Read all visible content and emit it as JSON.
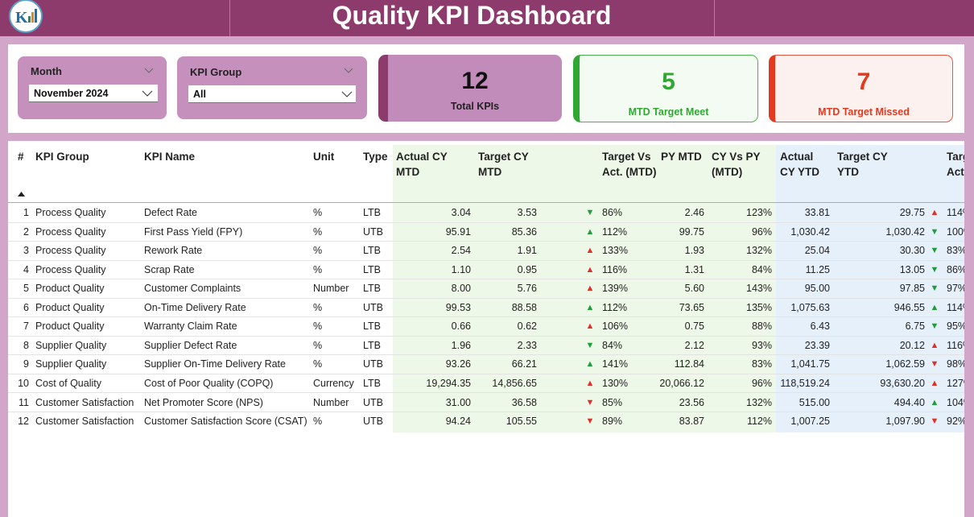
{
  "header": {
    "title": "Quality KPI Dashboard"
  },
  "filters": [
    {
      "label": "Month",
      "value": "November 2024"
    },
    {
      "label": "KPI Group",
      "value": "All"
    }
  ],
  "cards": [
    {
      "value": "12",
      "label": "Total KPIs"
    },
    {
      "value": "5",
      "label": "MTD Target Meet"
    },
    {
      "value": "7",
      "label": "MTD Target Missed"
    }
  ],
  "table": {
    "columns": [
      "#",
      "KPI Group",
      "KPI Name",
      "Unit",
      "Type",
      "Actual CY MTD",
      "Target CY MTD",
      "Target Vs Act. (MTD)",
      "PY MTD",
      "CY Vs PY (MTD)",
      "Actual CY YTD",
      "Target CY YTD",
      "Target Vs Act. (YTD)"
    ],
    "rows": [
      [
        "1",
        "Process Quality",
        "Defect Rate",
        "%",
        "LTB",
        "3.04",
        "3.53",
        {
          "arrow": "▼",
          "color": "#1e9e3a"
        },
        "86%",
        "2.46",
        "123%",
        "33.81",
        "29.75",
        {
          "arrow": "▲",
          "color": "#e0302a"
        },
        "114%"
      ],
      [
        "2",
        "Process Quality",
        "First Pass Yield (FPY)",
        "%",
        "UTB",
        "95.91",
        "85.36",
        {
          "arrow": "▲",
          "color": "#1e9e3a"
        },
        "112%",
        "99.75",
        "96%",
        "1,030.42",
        "1,030.42",
        {
          "arrow": "▼",
          "color": "#1e9e3a"
        },
        "100%"
      ],
      [
        "3",
        "Process Quality",
        "Rework Rate",
        "%",
        "LTB",
        "2.54",
        "1.91",
        {
          "arrow": "▲",
          "color": "#e0302a"
        },
        "133%",
        "1.93",
        "132%",
        "25.04",
        "30.30",
        {
          "arrow": "▼",
          "color": "#1e9e3a"
        },
        "83%"
      ],
      [
        "4",
        "Process Quality",
        "Scrap Rate",
        "%",
        "LTB",
        "1.10",
        "0.95",
        {
          "arrow": "▲",
          "color": "#e0302a"
        },
        "116%",
        "1.31",
        "84%",
        "11.25",
        "13.05",
        {
          "arrow": "▼",
          "color": "#1e9e3a"
        },
        "86%"
      ],
      [
        "5",
        "Product Quality",
        "Customer Complaints",
        "Number",
        "LTB",
        "8.00",
        "5.76",
        {
          "arrow": "▲",
          "color": "#e0302a"
        },
        "139%",
        "5.60",
        "143%",
        "95.00",
        "97.85",
        {
          "arrow": "▼",
          "color": "#1e9e3a"
        },
        "97%"
      ],
      [
        "6",
        "Product Quality",
        "On-Time Delivery Rate",
        "%",
        "UTB",
        "99.53",
        "88.58",
        {
          "arrow": "▲",
          "color": "#1e9e3a"
        },
        "112%",
        "73.65",
        "135%",
        "1,075.63",
        "946.55",
        {
          "arrow": "▲",
          "color": "#1e9e3a"
        },
        "114%"
      ],
      [
        "7",
        "Product Quality",
        "Warranty Claim Rate",
        "%",
        "LTB",
        "0.66",
        "0.62",
        {
          "arrow": "▲",
          "color": "#e0302a"
        },
        "106%",
        "0.75",
        "88%",
        "6.43",
        "6.75",
        {
          "arrow": "▼",
          "color": "#1e9e3a"
        },
        "95%"
      ],
      [
        "8",
        "Supplier Quality",
        "Supplier Defect Rate",
        "%",
        "LTB",
        "1.96",
        "2.33",
        {
          "arrow": "▼",
          "color": "#1e9e3a"
        },
        "84%",
        "2.12",
        "93%",
        "23.39",
        "20.12",
        {
          "arrow": "▲",
          "color": "#e0302a"
        },
        "116%"
      ],
      [
        "9",
        "Supplier Quality",
        "Supplier On-Time Delivery Rate",
        "%",
        "UTB",
        "93.26",
        "66.21",
        {
          "arrow": "▲",
          "color": "#1e9e3a"
        },
        "141%",
        "112.84",
        "83%",
        "1,041.75",
        "1,062.59",
        {
          "arrow": "▼",
          "color": "#e0302a"
        },
        "98%"
      ],
      [
        "10",
        "Cost of Quality",
        "Cost of Poor Quality (COPQ)",
        "Currency",
        "LTB",
        "19,294.35",
        "14,856.65",
        {
          "arrow": "▲",
          "color": "#e0302a"
        },
        "130%",
        "20,066.12",
        "96%",
        "118,519.24",
        "93,630.20",
        {
          "arrow": "▲",
          "color": "#e0302a"
        },
        "127%"
      ],
      [
        "11",
        "Customer Satisfaction",
        "Net Promoter Score (NPS)",
        "Number",
        "UTB",
        "31.00",
        "36.58",
        {
          "arrow": "▼",
          "color": "#e0302a"
        },
        "85%",
        "23.56",
        "132%",
        "515.00",
        "494.40",
        {
          "arrow": "▲",
          "color": "#1e9e3a"
        },
        "104%"
      ],
      [
        "12",
        "Customer Satisfaction",
        "Customer Satisfaction Score (CSAT)",
        "%",
        "UTB",
        "94.24",
        "105.55",
        {
          "arrow": "▼",
          "color": "#e0302a"
        },
        "89%",
        "83.87",
        "112%",
        "1,007.25",
        "1,097.90",
        {
          "arrow": "▼",
          "color": "#e0302a"
        },
        "92%"
      ]
    ]
  }
}
